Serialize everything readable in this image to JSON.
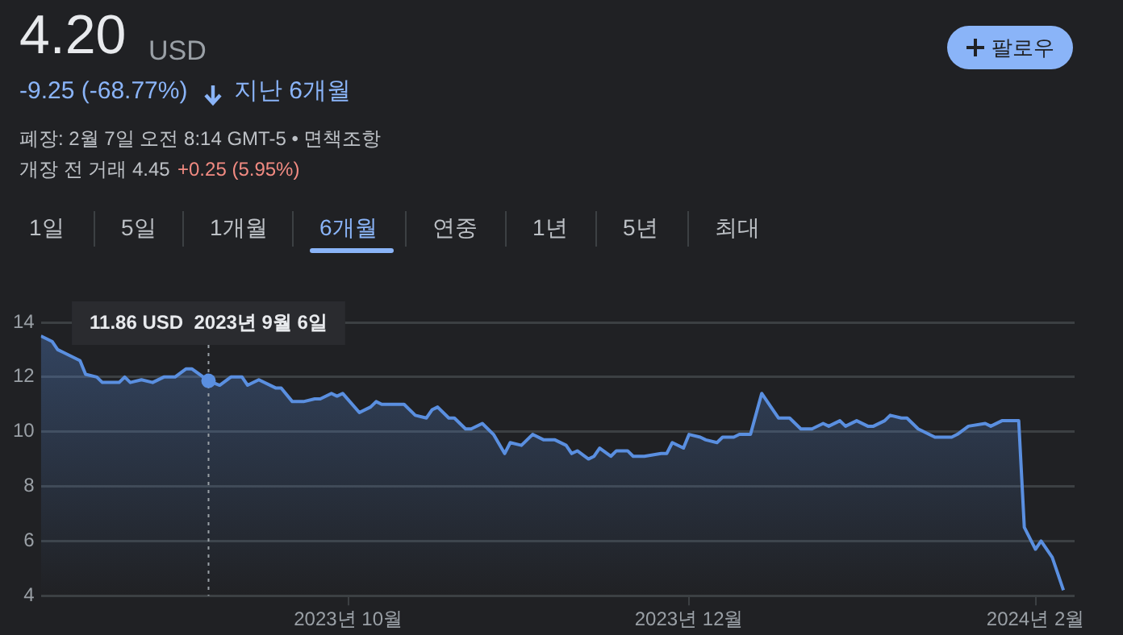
{
  "chart_data": {
    "type": "area",
    "annotations": [
      "4.20",
      "USD",
      "-9.25 (-68.77%)",
      "지난 6개월",
      "폐장: 2월 7일 오전 8:14 GMT-5 • 면책조항",
      "개장 전 거래 4.45",
      "+0.25 (5.95%)",
      "팔로우",
      "1일",
      "5일",
      "1개월",
      "6개월",
      "연중",
      "1년",
      "5년",
      "최대",
      {
        "text": "11.86 USD  2023년 9월 6일",
        "x": "2023-09-06",
        "y": 11.86
      }
    ],
    "x": [
      "2023-08-07",
      "2023-08-09",
      "2023-08-10",
      "2023-08-11",
      "2023-08-14",
      "2023-08-15",
      "2023-08-17",
      "2023-08-18",
      "2023-08-21",
      "2023-08-22",
      "2023-08-23",
      "2023-08-25",
      "2023-08-27",
      "2023-08-29",
      "2023-08-31",
      "2023-09-02",
      "2023-09-03",
      "2023-09-06",
      "2023-09-08",
      "2023-09-10",
      "2023-09-12",
      "2023-09-13",
      "2023-09-15",
      "2023-09-18",
      "2023-09-19",
      "2023-09-21",
      "2023-09-23",
      "2023-09-25",
      "2023-09-26",
      "2023-09-28",
      "2023-09-29",
      "2023-09-30",
      "2023-10-03",
      "2023-10-05",
      "2023-10-06",
      "2023-10-07",
      "2023-10-11",
      "2023-10-13",
      "2023-10-15",
      "2023-10-16",
      "2023-10-17",
      "2023-10-19",
      "2023-10-20",
      "2023-10-22",
      "2023-10-23",
      "2023-10-25",
      "2023-10-27",
      "2023-10-29",
      "2023-10-30",
      "2023-11-01",
      "2023-11-03",
      "2023-11-05",
      "2023-11-07",
      "2023-11-09",
      "2023-11-10",
      "2023-11-11",
      "2023-11-13",
      "2023-11-14",
      "2023-11-15",
      "2023-11-17",
      "2023-11-18",
      "2023-11-20",
      "2023-11-21",
      "2023-11-23",
      "2023-11-26",
      "2023-11-27",
      "2023-11-28",
      "2023-11-30",
      "2023-12-01",
      "2023-12-03",
      "2023-12-04",
      "2023-12-06",
      "2023-12-07",
      "2023-12-09",
      "2023-12-10",
      "2023-12-12",
      "2023-12-14",
      "2023-12-17",
      "2023-12-19",
      "2023-12-21",
      "2023-12-22",
      "2023-12-23",
      "2023-12-25",
      "2023-12-26",
      "2023-12-28",
      "2023-12-29",
      "2023-12-31",
      "2024-01-02",
      "2024-01-03",
      "2024-01-05",
      "2024-01-06",
      "2024-01-08",
      "2024-01-09",
      "2024-01-11",
      "2024-01-14",
      "2024-01-17",
      "2024-01-18",
      "2024-01-20",
      "2024-01-23",
      "2024-01-24",
      "2024-01-26",
      "2024-01-27",
      "2024-01-29",
      "2024-01-30",
      "2024-02-01",
      "2024-02-02",
      "2024-02-04",
      "2024-02-06"
    ],
    "series": [
      {
        "color": "#5a8fe0",
        "values": [
          13.5,
          13.3,
          13.0,
          12.9,
          12.6,
          12.1,
          12.0,
          11.8,
          11.8,
          12.0,
          11.8,
          11.9,
          11.8,
          12.0,
          12.0,
          12.3,
          12.3,
          11.86,
          11.7,
          12.0,
          12.0,
          11.7,
          11.9,
          11.6,
          11.6,
          11.1,
          11.1,
          11.2,
          11.2,
          11.4,
          11.3,
          11.4,
          10.7,
          10.9,
          11.1,
          11.0,
          11.0,
          10.6,
          10.5,
          10.8,
          10.9,
          10.5,
          10.5,
          10.1,
          10.1,
          10.3,
          9.9,
          9.2,
          9.6,
          9.5,
          9.9,
          9.7,
          9.7,
          9.5,
          9.2,
          9.3,
          9.0,
          9.1,
          9.4,
          9.1,
          9.3,
          9.3,
          9.1,
          9.1,
          9.2,
          9.2,
          9.6,
          9.4,
          9.9,
          9.8,
          9.7,
          9.6,
          9.8,
          9.8,
          9.9,
          9.9,
          11.4,
          10.5,
          10.5,
          10.1,
          10.1,
          10.1,
          10.3,
          10.2,
          10.4,
          10.2,
          10.4,
          10.2,
          10.2,
          10.4,
          10.6,
          10.5,
          10.5,
          10.1,
          9.8,
          9.8,
          9.9,
          10.2,
          10.3,
          10.2,
          10.4,
          10.4,
          10.4,
          6.5,
          5.7,
          6.0,
          5.4,
          4.2
        ]
      }
    ],
    "xlim": [
      "2023-08-07",
      "2024-02-08"
    ],
    "xticks": [
      {
        "value": "2023-10-01",
        "label": "2023년 10월"
      },
      {
        "value": "2023-12-01",
        "label": "2023년 12월"
      },
      {
        "value": "2024-02-01",
        "label": "2024년 2월"
      }
    ],
    "ylim": [
      4,
      14
    ],
    "yticks": [
      4,
      6,
      8,
      10,
      12,
      14
    ],
    "ref_lines": [
      {
        "axis": "x",
        "value": "2023-09-06",
        "color": "#9aa0a6",
        "line_style": "dotted"
      }
    ],
    "grid": "y",
    "legend": false,
    "marker": "none",
    "line_style": "solid"
  }
}
